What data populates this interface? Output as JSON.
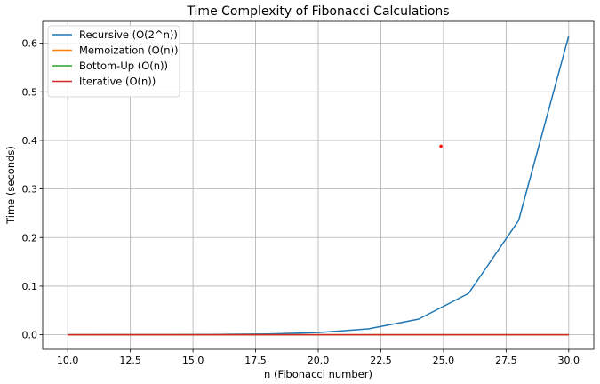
{
  "chart_data": {
    "type": "line",
    "title": "Time Complexity of Fibonacci Calculations",
    "xlabel": "n (Fibonacci number)",
    "ylabel": "Time (seconds)",
    "xlim": [
      9.0,
      31.0
    ],
    "ylim": [
      -0.03,
      0.645
    ],
    "x_ticks": [
      10.0,
      12.5,
      15.0,
      17.5,
      20.0,
      22.5,
      25.0,
      27.5,
      30.0
    ],
    "x_tick_labels": [
      "10.0",
      "12.5",
      "15.0",
      "17.5",
      "20.0",
      "22.5",
      "25.0",
      "27.5",
      "30.0"
    ],
    "y_ticks": [
      0.0,
      0.1,
      0.2,
      0.3,
      0.4,
      0.5,
      0.6
    ],
    "y_tick_labels": [
      "0.0",
      "0.1",
      "0.2",
      "0.3",
      "0.4",
      "0.5",
      "0.6"
    ],
    "grid": true,
    "legend_position": "top-left",
    "x": [
      10,
      12,
      14,
      16,
      18,
      20,
      22,
      24,
      26,
      28,
      30
    ],
    "series": [
      {
        "name": "Recursive (O(2^n))",
        "color": "#1f77b4",
        "values": [
          3e-05,
          8e-05,
          0.0002,
          0.0006,
          0.0016,
          0.0045,
          0.012,
          0.032,
          0.085,
          0.235,
          0.615
        ]
      },
      {
        "name": "Memoization (O(n))",
        "color": "#ff7f0e",
        "values": [
          5e-06,
          5e-06,
          6e-06,
          6e-06,
          7e-06,
          7e-06,
          8e-06,
          8e-06,
          9e-06,
          9e-06,
          1e-05
        ]
      },
      {
        "name": "Bottom-Up (O(n))",
        "color": "#2ca02c",
        "values": [
          3e-06,
          3e-06,
          4e-06,
          4e-06,
          4e-06,
          5e-06,
          5e-06,
          5e-06,
          6e-06,
          6e-06,
          6e-06
        ]
      },
      {
        "name": "Iterative (O(n))",
        "color": "#d62728",
        "values": [
          2e-06,
          2e-06,
          2e-06,
          3e-06,
          3e-06,
          3e-06,
          3e-06,
          4e-06,
          4e-06,
          4e-06,
          4e-06
        ]
      }
    ],
    "annotations": [
      {
        "type": "point",
        "x": 24.9,
        "y": 0.388,
        "color": "#ff0000"
      }
    ]
  }
}
